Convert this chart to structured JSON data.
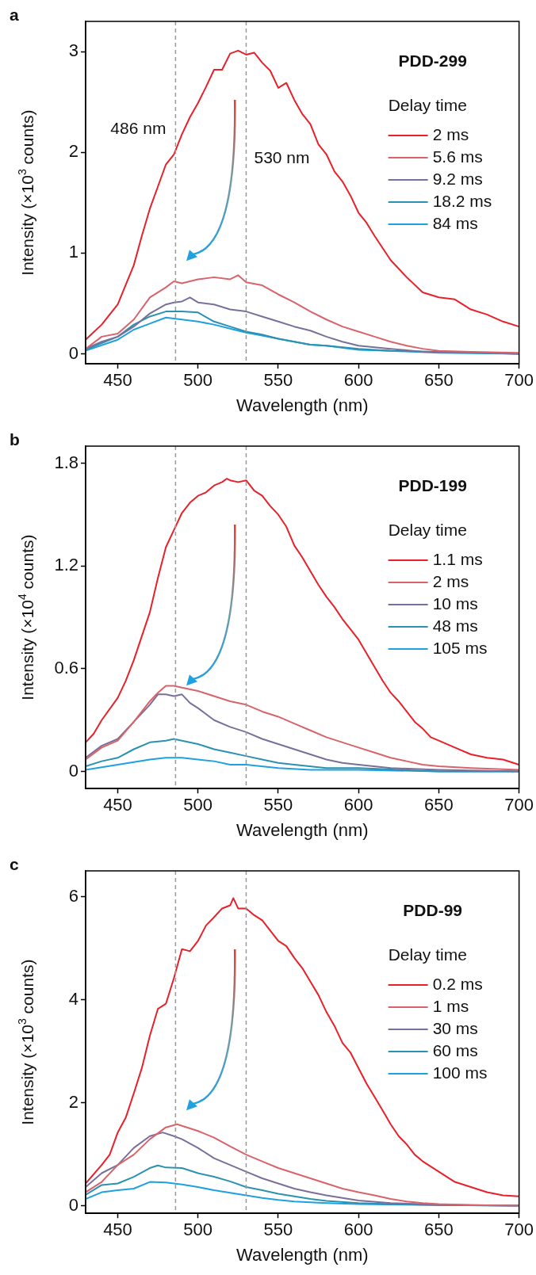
{
  "chart_data": [
    {
      "type": "line",
      "title": "PDD-299",
      "legend_title": "Delay time",
      "xlabel": "Wavelength (nm)",
      "ylabel": "Intensity (×10$^{3}$ counts)",
      "annotations": [
        "a"
      ],
      "legend": "top right",
      "xlim": [
        430,
        700
      ],
      "xticks": [
        450,
        500,
        550,
        600,
        650,
        700
      ],
      "ylim": [
        -0.1,
        3.3
      ],
      "yticks": [
        0,
        1,
        2,
        3
      ],
      "ref_lines": [
        {
          "axis": "x",
          "value": 486,
          "label": "486 nm",
          "color": "#999999",
          "line_style": "dashed"
        },
        {
          "axis": "x",
          "value": 530,
          "label": "530 nm",
          "color": "#999999",
          "line_style": "dashed"
        }
      ],
      "series": [
        {
          "name": "2 ms",
          "color": "#e8202a",
          "x": [
            430,
            440,
            450,
            460,
            465,
            470,
            475,
            480,
            485,
            490,
            495,
            500,
            505,
            510,
            515,
            520,
            525,
            530,
            535,
            540,
            545,
            550,
            555,
            560,
            565,
            570,
            575,
            580,
            585,
            590,
            595,
            600,
            605,
            610,
            620,
            630,
            640,
            650,
            660,
            670,
            680,
            690,
            700
          ],
          "values": [
            0.14,
            0.29,
            0.49,
            0.88,
            1.17,
            1.44,
            1.66,
            1.88,
            1.98,
            2.18,
            2.35,
            2.49,
            2.65,
            2.82,
            2.82,
            2.98,
            3.01,
            2.97,
            2.99,
            2.89,
            2.81,
            2.64,
            2.69,
            2.52,
            2.38,
            2.28,
            2.08,
            1.98,
            1.81,
            1.71,
            1.57,
            1.4,
            1.3,
            1.17,
            0.93,
            0.76,
            0.61,
            0.56,
            0.54,
            0.44,
            0.39,
            0.32,
            0.27
          ]
        },
        {
          "name": "5.6 ms",
          "color": "#d9636a",
          "x": [
            430,
            440,
            450,
            460,
            470,
            480,
            485,
            490,
            500,
            510,
            520,
            525,
            530,
            540,
            550,
            560,
            570,
            580,
            590,
            600,
            610,
            620,
            630,
            640,
            650,
            670,
            700
          ],
          "values": [
            0.05,
            0.17,
            0.2,
            0.34,
            0.56,
            0.66,
            0.72,
            0.7,
            0.74,
            0.76,
            0.74,
            0.78,
            0.71,
            0.68,
            0.59,
            0.51,
            0.42,
            0.34,
            0.27,
            0.22,
            0.17,
            0.12,
            0.08,
            0.05,
            0.03,
            0.02,
            0.01
          ]
        },
        {
          "name": "9.2 ms",
          "color": "#7a6f9b",
          "x": [
            430,
            440,
            450,
            460,
            470,
            480,
            485,
            490,
            495,
            500,
            510,
            520,
            525,
            530,
            540,
            550,
            560,
            570,
            580,
            590,
            600,
            620,
            640,
            660,
            700
          ],
          "values": [
            0.05,
            0.12,
            0.17,
            0.27,
            0.4,
            0.49,
            0.51,
            0.52,
            0.56,
            0.51,
            0.49,
            0.44,
            0.43,
            0.42,
            0.37,
            0.32,
            0.27,
            0.23,
            0.17,
            0.12,
            0.08,
            0.05,
            0.02,
            0.02,
            0
          ]
        },
        {
          "name": "18.2 ms",
          "color": "#2a92b0",
          "x": [
            430,
            450,
            460,
            470,
            480,
            490,
            500,
            510,
            520,
            530,
            540,
            550,
            560,
            570,
            580,
            600,
            620,
            650,
            700
          ],
          "values": [
            0.04,
            0.17,
            0.29,
            0.37,
            0.42,
            0.42,
            0.41,
            0.32,
            0.27,
            0.22,
            0.19,
            0.15,
            0.12,
            0.09,
            0.08,
            0.05,
            0.03,
            0.02,
            0
          ]
        },
        {
          "name": "84 ms",
          "color": "#1fa0e0",
          "x": [
            430,
            450,
            460,
            470,
            480,
            490,
            500,
            510,
            520,
            530,
            540,
            550,
            560,
            570,
            580,
            600,
            620,
            650,
            700
          ],
          "values": [
            0.03,
            0.14,
            0.24,
            0.3,
            0.36,
            0.34,
            0.32,
            0.29,
            0.25,
            0.21,
            0.18,
            0.15,
            0.12,
            0.09,
            0.08,
            0.04,
            0.03,
            0.01,
            0
          ]
        }
      ]
    },
    {
      "type": "line",
      "title": "PDD-199",
      "legend_title": "Delay time",
      "xlabel": "Wavelength (nm)",
      "ylabel": "Intensity (×10$^{4}$ counts)",
      "annotations": [
        "b"
      ],
      "legend": "top right",
      "xlim": [
        430,
        700
      ],
      "xticks": [
        450,
        500,
        550,
        600,
        650,
        700
      ],
      "ylim": [
        -0.1,
        1.9
      ],
      "yticks": [
        0,
        0.6,
        1.2,
        1.8
      ],
      "ref_lines": [
        {
          "axis": "x",
          "value": 486,
          "color": "#999999",
          "line_style": "dashed"
        },
        {
          "axis": "x",
          "value": 530,
          "color": "#999999",
          "line_style": "dashed"
        }
      ],
      "series": [
        {
          "name": "1.1 ms",
          "color": "#e8202a",
          "x": [
            430,
            435,
            440,
            450,
            455,
            460,
            465,
            470,
            475,
            480,
            485,
            490,
            495,
            500,
            505,
            510,
            515,
            518,
            520,
            525,
            530,
            535,
            540,
            545,
            550,
            555,
            560,
            565,
            570,
            575,
            580,
            585,
            590,
            595,
            600,
            605,
            610,
            615,
            620,
            625,
            630,
            635,
            640,
            645,
            650,
            660,
            670,
            680,
            690,
            700
          ],
          "values": [
            0.17,
            0.22,
            0.3,
            0.43,
            0.53,
            0.65,
            0.79,
            0.93,
            1.13,
            1.31,
            1.41,
            1.51,
            1.57,
            1.61,
            1.63,
            1.67,
            1.69,
            1.71,
            1.7,
            1.69,
            1.7,
            1.64,
            1.61,
            1.55,
            1.5,
            1.43,
            1.32,
            1.25,
            1.17,
            1.09,
            1.02,
            0.96,
            0.89,
            0.83,
            0.77,
            0.69,
            0.61,
            0.53,
            0.46,
            0.41,
            0.35,
            0.29,
            0.25,
            0.2,
            0.18,
            0.14,
            0.1,
            0.08,
            0.07,
            0.04
          ]
        },
        {
          "name": "2 ms",
          "color": "#d9636a",
          "x": [
            430,
            440,
            450,
            460,
            470,
            475,
            480,
            485,
            490,
            500,
            510,
            520,
            530,
            540,
            550,
            560,
            570,
            580,
            590,
            600,
            610,
            620,
            630,
            640,
            650,
            670,
            700
          ],
          "values": [
            0.07,
            0.14,
            0.18,
            0.29,
            0.41,
            0.46,
            0.5,
            0.5,
            0.49,
            0.47,
            0.44,
            0.41,
            0.39,
            0.35,
            0.32,
            0.28,
            0.24,
            0.2,
            0.17,
            0.14,
            0.11,
            0.08,
            0.06,
            0.04,
            0.03,
            0.02,
            0.01
          ]
        },
        {
          "name": "10 ms",
          "color": "#7a6f9b",
          "x": [
            430,
            440,
            450,
            460,
            470,
            475,
            480,
            485,
            490,
            495,
            500,
            510,
            520,
            530,
            540,
            550,
            560,
            570,
            580,
            590,
            600,
            620,
            650,
            700
          ],
          "values": [
            0.08,
            0.15,
            0.19,
            0.29,
            0.39,
            0.45,
            0.45,
            0.44,
            0.45,
            0.4,
            0.37,
            0.3,
            0.26,
            0.23,
            0.19,
            0.16,
            0.13,
            0.1,
            0.07,
            0.05,
            0.04,
            0.02,
            0.01,
            0
          ]
        },
        {
          "name": "48 ms",
          "color": "#2a92b0",
          "x": [
            430,
            440,
            450,
            460,
            470,
            480,
            485,
            490,
            500,
            510,
            520,
            530,
            540,
            550,
            560,
            580,
            600,
            650,
            700
          ],
          "values": [
            0.03,
            0.06,
            0.08,
            0.13,
            0.17,
            0.18,
            0.19,
            0.18,
            0.16,
            0.13,
            0.11,
            0.09,
            0.07,
            0.05,
            0.04,
            0.02,
            0.02,
            0,
            0
          ]
        },
        {
          "name": "105 ms",
          "color": "#1fa0e0",
          "x": [
            430,
            450,
            470,
            480,
            490,
            500,
            510,
            520,
            530,
            550,
            570,
            600,
            650,
            700
          ],
          "values": [
            0.01,
            0.04,
            0.07,
            0.08,
            0.08,
            0.07,
            0.06,
            0.04,
            0.04,
            0.02,
            0.01,
            0.01,
            0,
            0
          ]
        }
      ]
    },
    {
      "type": "line",
      "title": "PDD-99",
      "legend_title": "Delay time",
      "xlabel": "Wavelength (nm)",
      "ylabel": "Intensity (×10$^{3}$ counts)",
      "annotations": [
        "c"
      ],
      "legend": "top right",
      "xlim": [
        430,
        700
      ],
      "xticks": [
        450,
        500,
        550,
        600,
        650,
        700
      ],
      "ylim": [
        -0.15,
        6.5
      ],
      "yticks": [
        0,
        2,
        4,
        6
      ],
      "ref_lines": [
        {
          "axis": "x",
          "value": 486,
          "color": "#999999",
          "line_style": "dashed"
        },
        {
          "axis": "x",
          "value": 530,
          "color": "#999999",
          "line_style": "dashed"
        }
      ],
      "series": [
        {
          "name": "0.2 ms",
          "color": "#e8202a",
          "x": [
            430,
            440,
            445,
            450,
            455,
            460,
            465,
            470,
            475,
            480,
            485,
            490,
            495,
            500,
            505,
            510,
            515,
            520,
            522,
            525,
            530,
            535,
            540,
            545,
            550,
            555,
            560,
            565,
            570,
            575,
            580,
            585,
            590,
            595,
            600,
            605,
            610,
            615,
            620,
            625,
            630,
            635,
            640,
            645,
            650,
            660,
            670,
            680,
            690,
            700
          ],
          "values": [
            0.43,
            0.79,
            0.99,
            1.42,
            1.71,
            2.18,
            2.67,
            3.3,
            3.82,
            3.92,
            4.42,
            4.98,
            4.94,
            5.14,
            5.44,
            5.6,
            5.77,
            5.83,
            5.97,
            5.77,
            5.77,
            5.64,
            5.54,
            5.34,
            5.14,
            5.04,
            4.81,
            4.61,
            4.35,
            4.09,
            3.76,
            3.49,
            3.16,
            2.97,
            2.67,
            2.37,
            2.11,
            1.85,
            1.58,
            1.35,
            1.19,
            0.99,
            0.86,
            0.76,
            0.66,
            0.46,
            0.36,
            0.26,
            0.2,
            0.18
          ]
        },
        {
          "name": "1 ms",
          "color": "#d9636a",
          "x": [
            430,
            440,
            450,
            460,
            470,
            480,
            487,
            490,
            500,
            510,
            520,
            530,
            540,
            550,
            560,
            570,
            580,
            590,
            600,
            610,
            620,
            630,
            640,
            650,
            670,
            700
          ],
          "values": [
            0.26,
            0.46,
            0.79,
            0.99,
            1.29,
            1.52,
            1.58,
            1.55,
            1.45,
            1.32,
            1.15,
            0.99,
            0.86,
            0.73,
            0.63,
            0.53,
            0.43,
            0.33,
            0.26,
            0.2,
            0.13,
            0.08,
            0.05,
            0.03,
            0.01,
            0
          ]
        },
        {
          "name": "30 ms",
          "color": "#7a6f9b",
          "x": [
            430,
            440,
            450,
            460,
            470,
            478,
            485,
            490,
            500,
            510,
            520,
            530,
            540,
            550,
            560,
            570,
            580,
            590,
            600,
            620,
            650,
            700
          ],
          "values": [
            0.36,
            0.63,
            0.79,
            1.12,
            1.35,
            1.42,
            1.35,
            1.29,
            1.12,
            0.92,
            0.79,
            0.66,
            0.53,
            0.43,
            0.33,
            0.26,
            0.2,
            0.15,
            0.1,
            0.05,
            0.02,
            0
          ]
        },
        {
          "name": "60 ms",
          "color": "#2a92b0",
          "x": [
            430,
            440,
            450,
            460,
            470,
            475,
            480,
            490,
            500,
            510,
            520,
            530,
            540,
            550,
            560,
            570,
            580,
            600,
            620,
            650,
            700
          ],
          "values": [
            0.21,
            0.4,
            0.43,
            0.56,
            0.73,
            0.78,
            0.74,
            0.73,
            0.63,
            0.56,
            0.47,
            0.36,
            0.3,
            0.23,
            0.18,
            0.13,
            0.09,
            0.05,
            0.03,
            0.01,
            0
          ]
        },
        {
          "name": "100 ms",
          "color": "#1fa0e0",
          "x": [
            430,
            440,
            450,
            460,
            470,
            480,
            490,
            500,
            510,
            520,
            530,
            540,
            550,
            560,
            580,
            600,
            650,
            700
          ],
          "values": [
            0.13,
            0.26,
            0.3,
            0.33,
            0.46,
            0.45,
            0.41,
            0.36,
            0.3,
            0.25,
            0.2,
            0.15,
            0.11,
            0.08,
            0.05,
            0.03,
            0.01,
            0
          ]
        }
      ]
    }
  ]
}
